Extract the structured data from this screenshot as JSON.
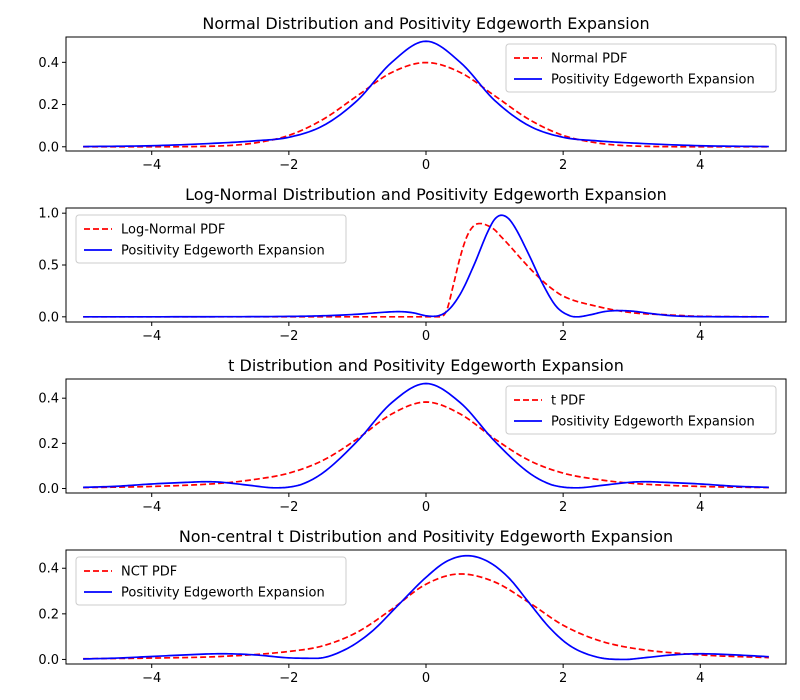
{
  "chart_data": [
    {
      "type": "line",
      "title": "Normal Distribution and Positivity Edgeworth Expansion",
      "xlim": [
        -5.25,
        5.25
      ],
      "ylim": [
        -0.02,
        0.52
      ],
      "xticks": [
        -4,
        -2,
        0,
        2,
        4
      ],
      "xtick_labels": [
        "−4",
        "−2",
        "0",
        "2",
        "4"
      ],
      "yticks": [
        0.0,
        0.2,
        0.4
      ],
      "ytick_labels": [
        "0.0",
        "0.2",
        "0.4"
      ],
      "legend": "top-right",
      "grid": false,
      "series": [
        {
          "name": "Normal PDF",
          "color": "#ff0000",
          "dash": true,
          "x": [
            -5,
            -4,
            -3,
            -2.5,
            -2,
            -1.5,
            -1,
            -0.5,
            0,
            0.5,
            1,
            1.5,
            2,
            2.5,
            3,
            4,
            5
          ],
          "y": [
            0.0,
            0.0001,
            0.004,
            0.018,
            0.054,
            0.13,
            0.242,
            0.352,
            0.399,
            0.352,
            0.242,
            0.13,
            0.054,
            0.018,
            0.004,
            0.0001,
            0.0
          ]
        },
        {
          "name": "Positivity Edgeworth Expansion",
          "color": "#0000ff",
          "dash": false,
          "x": [
            -5,
            -4,
            -3,
            -2.5,
            -2,
            -1.5,
            -1,
            -0.5,
            0,
            0.5,
            1,
            1.5,
            2,
            2.5,
            3,
            4,
            5
          ],
          "y": [
            0.001,
            0.005,
            0.018,
            0.028,
            0.045,
            0.1,
            0.22,
            0.4,
            0.5,
            0.4,
            0.22,
            0.1,
            0.045,
            0.028,
            0.018,
            0.005,
            0.001
          ]
        }
      ]
    },
    {
      "type": "line",
      "title": "Log-Normal Distribution and Positivity Edgeworth Expansion",
      "xlim": [
        -5.25,
        5.25
      ],
      "ylim": [
        -0.05,
        1.05
      ],
      "xticks": [
        -4,
        -2,
        0,
        2,
        4
      ],
      "xtick_labels": [
        "−4",
        "−2",
        "0",
        "2",
        "4"
      ],
      "yticks": [
        0.0,
        0.5,
        1.0
      ],
      "ytick_labels": [
        "0.0",
        "0.5",
        "1.0"
      ],
      "legend": "top-left",
      "grid": false,
      "series": [
        {
          "name": "Log-Normal PDF",
          "color": "#ff0000",
          "dash": true,
          "x": [
            -5,
            -1,
            0,
            0.2,
            0.3,
            0.4,
            0.5,
            0.6,
            0.7,
            0.8,
            0.9,
            1.0,
            1.1,
            1.2,
            1.4,
            1.6,
            1.8,
            2,
            2.5,
            3,
            3.5,
            4,
            5
          ],
          "y": [
            0,
            0,
            0,
            0,
            0.06,
            0.31,
            0.58,
            0.78,
            0.88,
            0.9,
            0.88,
            0.84,
            0.77,
            0.7,
            0.55,
            0.41,
            0.29,
            0.2,
            0.1,
            0.04,
            0.02,
            0.005,
            0.0
          ]
        },
        {
          "name": "Positivity Edgeworth Expansion",
          "color": "#0000ff",
          "dash": false,
          "x": [
            -5,
            -3,
            -2,
            -1.5,
            -1,
            -0.7,
            -0.4,
            -0.2,
            0,
            0.1,
            0.3,
            0.5,
            0.7,
            0.9,
            1.0,
            1.1,
            1.2,
            1.3,
            1.5,
            1.7,
            1.9,
            2.1,
            2.2,
            2.4,
            2.6,
            2.8,
            3,
            3.3,
            3.6,
            4,
            5
          ],
          "y": [
            0,
            0.001,
            0.004,
            0.01,
            0.025,
            0.04,
            0.05,
            0.04,
            0.01,
            0.005,
            0.05,
            0.22,
            0.5,
            0.82,
            0.94,
            0.98,
            0.95,
            0.86,
            0.6,
            0.32,
            0.1,
            0.01,
            0.0,
            0.02,
            0.05,
            0.06,
            0.055,
            0.03,
            0.01,
            0.002,
            0
          ]
        }
      ]
    },
    {
      "type": "line",
      "title": "t Distribution and Positivity Edgeworth Expansion",
      "xlim": [
        -5.25,
        5.25
      ],
      "ylim": [
        -0.02,
        0.485
      ],
      "xticks": [
        -4,
        -2,
        0,
        2,
        4
      ],
      "xtick_labels": [
        "−4",
        "−2",
        "0",
        "2",
        "4"
      ],
      "yticks": [
        0.0,
        0.2,
        0.4
      ],
      "ytick_labels": [
        "0.0",
        "0.2",
        "0.4"
      ],
      "legend": "top-right",
      "grid": false,
      "series": [
        {
          "name": "t PDF",
          "color": "#ff0000",
          "dash": true,
          "x": [
            -5,
            -4,
            -3,
            -2.5,
            -2,
            -1.5,
            -1,
            -0.5,
            0,
            0.5,
            1,
            1.5,
            2,
            2.5,
            3,
            4,
            5
          ],
          "y": [
            0.004,
            0.009,
            0.023,
            0.04,
            0.068,
            0.125,
            0.22,
            0.33,
            0.383,
            0.33,
            0.22,
            0.125,
            0.068,
            0.04,
            0.023,
            0.009,
            0.004
          ]
        },
        {
          "name": "Positivity Edgeworth Expansion",
          "color": "#0000ff",
          "dash": false,
          "x": [
            -5,
            -4.5,
            -4,
            -3.5,
            -3.2,
            -3,
            -2.6,
            -2.2,
            -2,
            -1.8,
            -1.5,
            -1,
            -0.5,
            0,
            0.5,
            1,
            1.5,
            1.8,
            2,
            2.2,
            2.6,
            3,
            3.2,
            3.5,
            4,
            4.5,
            5
          ],
          "y": [
            0.005,
            0.01,
            0.02,
            0.027,
            0.03,
            0.028,
            0.015,
            0.003,
            0.006,
            0.02,
            0.07,
            0.21,
            0.38,
            0.465,
            0.38,
            0.21,
            0.07,
            0.02,
            0.006,
            0.003,
            0.015,
            0.028,
            0.03,
            0.027,
            0.02,
            0.01,
            0.005
          ]
        }
      ]
    },
    {
      "type": "line",
      "title": "Non-central t Distribution and Positivity Edgeworth Expansion",
      "xlim": [
        -5.25,
        5.25
      ],
      "ylim": [
        -0.02,
        0.48
      ],
      "xticks": [
        -4,
        -2,
        0,
        2,
        4
      ],
      "xtick_labels": [
        "−4",
        "−2",
        "0",
        "2",
        "4"
      ],
      "yticks": [
        0.0,
        0.2,
        0.4
      ],
      "ytick_labels": [
        "0.0",
        "0.2",
        "0.4"
      ],
      "legend": "top-left",
      "grid": false,
      "series": [
        {
          "name": "NCT PDF",
          "color": "#ff0000",
          "dash": true,
          "x": [
            -5,
            -4,
            -3,
            -2,
            -1.5,
            -1,
            -0.5,
            0,
            0.5,
            1,
            1.5,
            2,
            2.5,
            3,
            4,
            5
          ],
          "y": [
            0.003,
            0.006,
            0.013,
            0.035,
            0.06,
            0.12,
            0.22,
            0.33,
            0.375,
            0.34,
            0.25,
            0.15,
            0.085,
            0.05,
            0.02,
            0.008
          ]
        },
        {
          "name": "Positivity Edgeworth Expansion",
          "color": "#0000ff",
          "dash": false,
          "x": [
            -5,
            -4.5,
            -4,
            -3.5,
            -3,
            -2.5,
            -2,
            -1.6,
            -1.2,
            -0.8,
            -0.4,
            0,
            0.3,
            0.6,
            0.9,
            1.2,
            1.5,
            1.8,
            2.1,
            2.5,
            2.9,
            3.2,
            3.6,
            4,
            4.5,
            5
          ],
          "y": [
            0.002,
            0.006,
            0.013,
            0.02,
            0.025,
            0.02,
            0.007,
            0.005,
            0.04,
            0.12,
            0.24,
            0.36,
            0.43,
            0.455,
            0.43,
            0.36,
            0.25,
            0.14,
            0.06,
            0.01,
            0.0,
            0.008,
            0.02,
            0.025,
            0.02,
            0.012
          ]
        }
      ]
    }
  ]
}
